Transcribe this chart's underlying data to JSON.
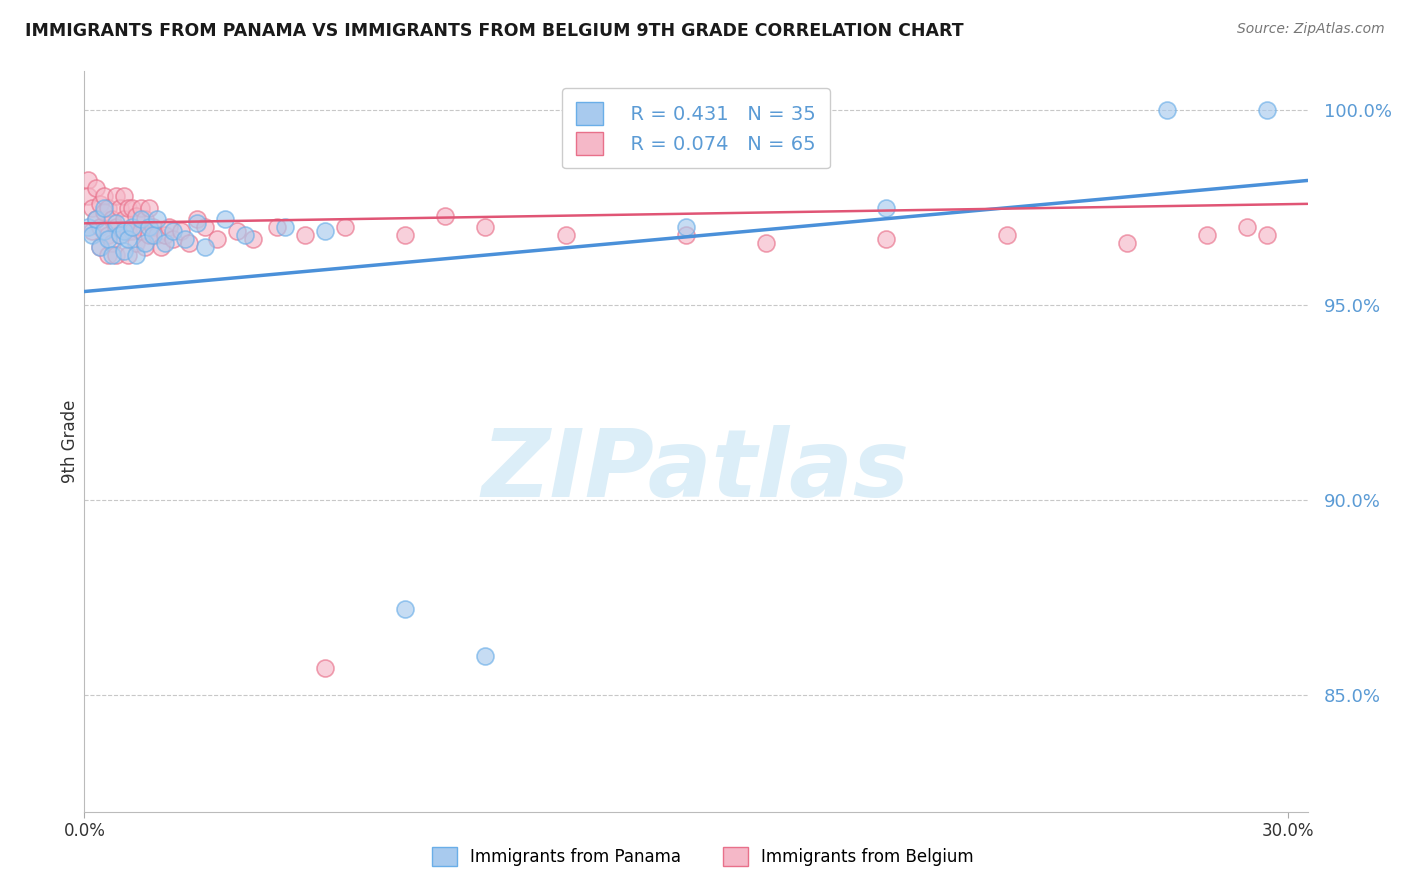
{
  "title": "IMMIGRANTS FROM PANAMA VS IMMIGRANTS FROM BELGIUM 9TH GRADE CORRELATION CHART",
  "source": "Source: ZipAtlas.com",
  "ylabel": "9th Grade",
  "color_panama": "#a8caee",
  "color_panama_edge": "#6aaee8",
  "color_belgium": "#f5b8c8",
  "color_belgium_edge": "#e8708a",
  "color_panama_line": "#4a90d9",
  "color_belgium_line": "#e05575",
  "ytick_color": "#5b9bd5",
  "xlim": [
    0.0,
    0.305
  ],
  "ylim": [
    0.82,
    1.01
  ],
  "yticks": [
    0.85,
    0.9,
    0.95,
    1.0
  ],
  "ytick_labels": [
    "85.0%",
    "90.0%",
    "95.0%",
    "100.0%"
  ],
  "panama_x": [
    0.001,
    0.002,
    0.003,
    0.004,
    0.005,
    0.005,
    0.006,
    0.007,
    0.008,
    0.009,
    0.01,
    0.01,
    0.011,
    0.012,
    0.013,
    0.014,
    0.015,
    0.016,
    0.017,
    0.018,
    0.02,
    0.022,
    0.025,
    0.028,
    0.03,
    0.035,
    0.04,
    0.05,
    0.06,
    0.08,
    0.1,
    0.15,
    0.2,
    0.27,
    0.295
  ],
  "panama_y": [
    0.97,
    0.968,
    0.972,
    0.965,
    0.975,
    0.969,
    0.967,
    0.963,
    0.971,
    0.968,
    0.964,
    0.969,
    0.967,
    0.97,
    0.963,
    0.972,
    0.966,
    0.97,
    0.968,
    0.972,
    0.966,
    0.969,
    0.967,
    0.971,
    0.965,
    0.972,
    0.968,
    0.97,
    0.969,
    0.872,
    0.86,
    0.97,
    0.975,
    1.0,
    1.0
  ],
  "belgium_x": [
    0.001,
    0.001,
    0.002,
    0.002,
    0.003,
    0.003,
    0.004,
    0.004,
    0.004,
    0.005,
    0.005,
    0.006,
    0.006,
    0.006,
    0.007,
    0.007,
    0.008,
    0.008,
    0.008,
    0.009,
    0.009,
    0.01,
    0.01,
    0.011,
    0.011,
    0.011,
    0.012,
    0.012,
    0.013,
    0.013,
    0.014,
    0.014,
    0.015,
    0.015,
    0.016,
    0.016,
    0.017,
    0.018,
    0.019,
    0.02,
    0.021,
    0.022,
    0.024,
    0.026,
    0.028,
    0.03,
    0.033,
    0.038,
    0.042,
    0.048,
    0.055,
    0.065,
    0.08,
    0.1,
    0.12,
    0.15,
    0.17,
    0.2,
    0.23,
    0.26,
    0.28,
    0.29,
    0.295,
    0.06,
    0.09
  ],
  "belgium_y": [
    0.982,
    0.978,
    0.975,
    0.969,
    0.98,
    0.972,
    0.976,
    0.97,
    0.965,
    0.978,
    0.974,
    0.975,
    0.968,
    0.963,
    0.972,
    0.966,
    0.978,
    0.97,
    0.963,
    0.975,
    0.968,
    0.978,
    0.972,
    0.975,
    0.969,
    0.963,
    0.975,
    0.969,
    0.973,
    0.966,
    0.975,
    0.969,
    0.972,
    0.965,
    0.975,
    0.968,
    0.97,
    0.968,
    0.965,
    0.968,
    0.97,
    0.967,
    0.969,
    0.966,
    0.972,
    0.97,
    0.967,
    0.969,
    0.967,
    0.97,
    0.968,
    0.97,
    0.968,
    0.97,
    0.968,
    0.968,
    0.966,
    0.967,
    0.968,
    0.966,
    0.968,
    0.97,
    0.968,
    0.857,
    0.973
  ],
  "pan_line_x0": 0.0,
  "pan_line_x1": 0.305,
  "pan_line_y0": 0.9535,
  "pan_line_y1": 0.982,
  "bel_line_x0": 0.0,
  "bel_line_x1": 0.305,
  "bel_line_y0": 0.971,
  "bel_line_y1": 0.976
}
